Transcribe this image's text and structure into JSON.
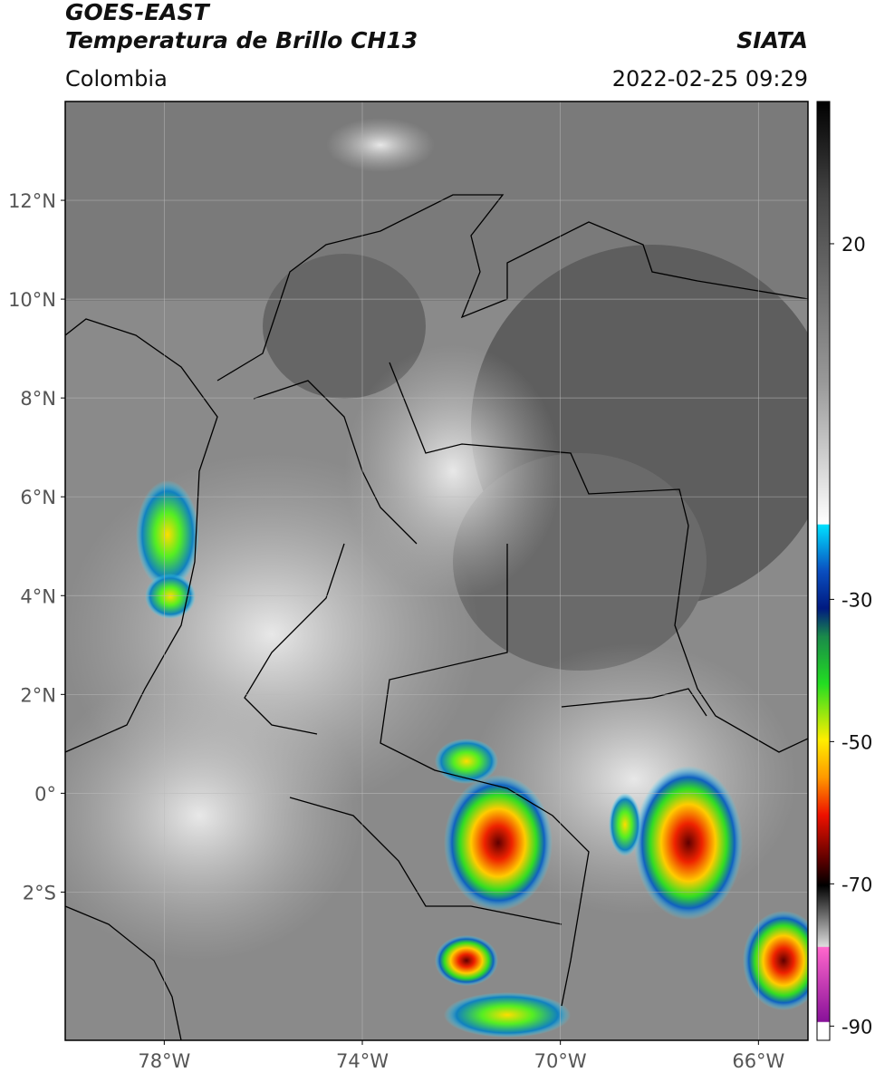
{
  "chart_data": {
    "type": "map",
    "title": "GOES-EAST",
    "subtitle": "Temperatura de Brillo CH13",
    "source": "SIATA",
    "region": "Colombia",
    "datetime": "2022-02-25 09:29",
    "xlim": [
      -80,
      -65
    ],
    "ylim": [
      -5,
      14
    ],
    "xticks": [
      {
        "value": -78,
        "label": "78°W"
      },
      {
        "value": -74,
        "label": "74°W"
      },
      {
        "value": -70,
        "label": "70°W"
      },
      {
        "value": -66,
        "label": "66°W"
      }
    ],
    "yticks": [
      {
        "value": 12,
        "label": "12°N"
      },
      {
        "value": 10,
        "label": "10°N"
      },
      {
        "value": 8,
        "label": "8°N"
      },
      {
        "value": 6,
        "label": "6°N"
      },
      {
        "value": 4,
        "label": "4°N"
      },
      {
        "value": 2,
        "label": "2°N"
      },
      {
        "value": 0,
        "label": "0°"
      },
      {
        "value": -2,
        "label": "2°S"
      }
    ],
    "grid": true,
    "colorbar": {
      "lim": [
        -92,
        40
      ],
      "ticks": [
        20,
        -30,
        -50,
        -70,
        -90
      ]
    }
  }
}
